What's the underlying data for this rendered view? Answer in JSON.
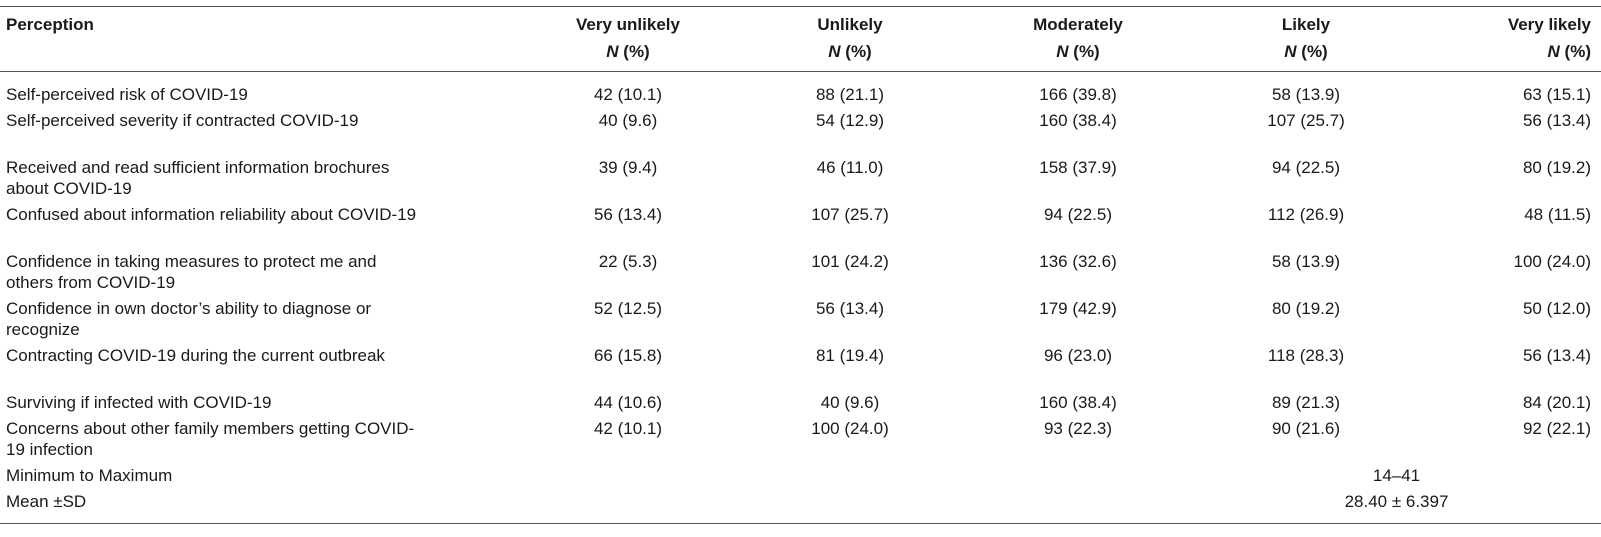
{
  "header": {
    "perception": "Perception",
    "columns": [
      "Very unlikely",
      "Unlikely",
      "Moderately",
      "Likely",
      "Very likely"
    ],
    "n_label": "N",
    "pct_label": "(%)"
  },
  "rows": [
    {
      "label": "Self-perceived risk of COVID-19",
      "values": [
        "42 (10.1)",
        "88 (21.1)",
        "166 (39.8)",
        "58 (13.9)",
        "63 (15.1)"
      ]
    },
    {
      "label": "Self-perceived severity if contracted COVID-19",
      "values": [
        "40 (9.6)",
        "54 (12.9)",
        "160 (38.4)",
        "107 (25.7)",
        "56 (13.4)"
      ]
    },
    {
      "label": "Received and read sufficient information brochures about COVID-19",
      "values": [
        "39 (9.4)",
        "46 (11.0)",
        "158 (37.9)",
        "94 (22.5)",
        "80 (19.2)"
      ]
    },
    {
      "label": "Confused about information reliability about COVID-19",
      "values": [
        "56 (13.4)",
        "107 (25.7)",
        "94 (22.5)",
        "112 (26.9)",
        "48 (11.5)"
      ]
    },
    {
      "label": "Confidence in taking measures to protect me and others from COVID-19",
      "values": [
        "22 (5.3)",
        "101 (24.2)",
        "136 (32.6)",
        "58 (13.9)",
        "100 (24.0)"
      ]
    },
    {
      "label": "Confidence in own doctor’s ability to diagnose or recognize",
      "values": [
        "52 (12.5)",
        "56 (13.4)",
        "179 (42.9)",
        "80 (19.2)",
        "50 (12.0)"
      ]
    },
    {
      "label": "Contracting COVID-19 during the current outbreak",
      "values": [
        "66 (15.8)",
        "81 (19.4)",
        "96 (23.0)",
        "118 (28.3)",
        "56 (13.4)"
      ]
    },
    {
      "label": "Surviving if infected with COVID-19",
      "values": [
        "44 (10.6)",
        "40 (9.6)",
        "160 (38.4)",
        "89 (21.3)",
        "84 (20.1)"
      ]
    },
    {
      "label": "Concerns about other family members getting COVID-19 infection",
      "values": [
        "42 (10.1)",
        "100 (24.0)",
        "93 (22.3)",
        "90 (21.6)",
        "92 (22.1)"
      ]
    }
  ],
  "summary": [
    {
      "label": "Minimum to Maximum",
      "value": "14–41"
    },
    {
      "label": "Mean ±SD",
      "value": "28.40 ± 6.397"
    }
  ]
}
